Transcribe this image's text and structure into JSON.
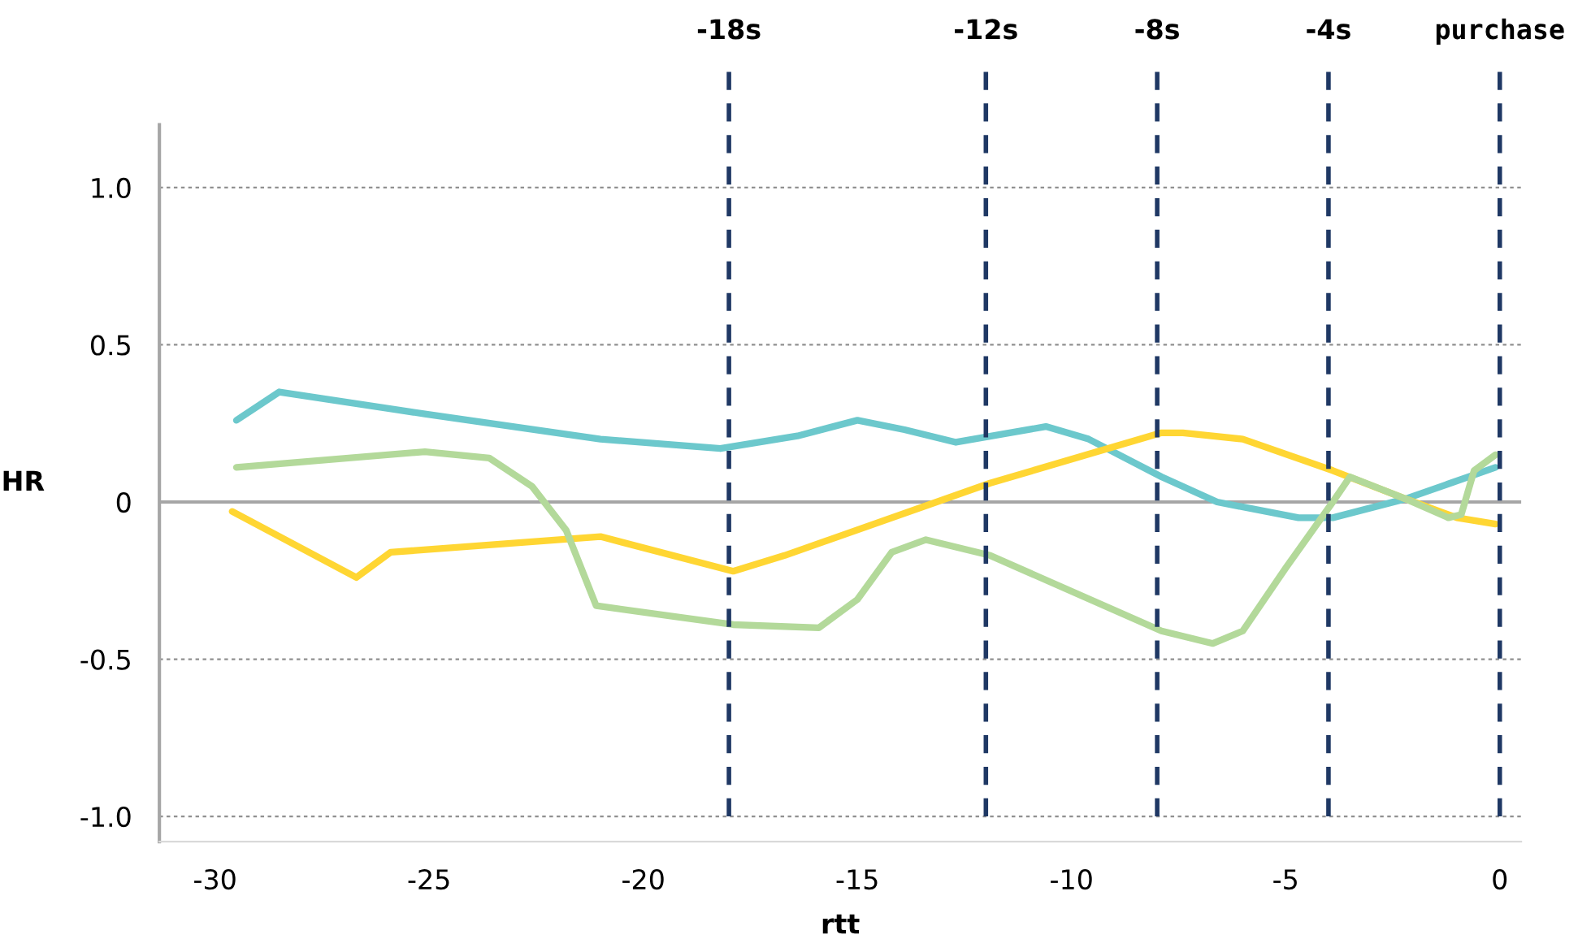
{
  "chart_data": {
    "type": "line",
    "xlabel": "rtt",
    "ylabel": "HR",
    "xlim": [
      -31.3,
      0.5
    ],
    "ylim": [
      -1.08,
      1.2
    ],
    "xticks": [
      -30,
      -25,
      -20,
      -15,
      -10,
      -5,
      0
    ],
    "yticks": [
      {
        "value": -1.0,
        "label": "-1.0"
      },
      {
        "value": -0.5,
        "label": "-0.5"
      },
      0,
      {
        "value": 0.5,
        "label": "0.5"
      },
      {
        "value": 1.0,
        "label": "1.0"
      }
    ],
    "grid": "y",
    "marker": "none",
    "line_style": "solid",
    "series": [
      {
        "color": "#6cc8cc",
        "x": [
          -29.5,
          -28.5,
          -25.1,
          -21.0,
          -18.2,
          -16.4,
          -15.0,
          -13.9,
          -12.7,
          -10.6,
          -9.6,
          -7.9,
          -6.6,
          -4.7,
          -3.9,
          -2.2,
          -0.1
        ],
        "values": [
          0.26,
          0.35,
          0.28,
          0.2,
          0.17,
          0.21,
          0.26,
          0.23,
          0.19,
          0.24,
          0.2,
          0.08,
          0.0,
          -0.05,
          -0.05,
          0.01,
          0.11
        ]
      },
      {
        "color": "#ffd633",
        "x": [
          -29.6,
          -26.7,
          -25.9,
          -21.0,
          -17.9,
          -16.7,
          -11.9,
          -7.9,
          -7.4,
          -6.0,
          -3.9,
          -2.2,
          -1.0,
          -0.1
        ],
        "values": [
          -0.03,
          -0.24,
          -0.16,
          -0.11,
          -0.22,
          -0.17,
          0.06,
          0.22,
          0.22,
          0.2,
          0.1,
          0.01,
          -0.05,
          -0.07
        ]
      },
      {
        "color": "#b3d99a",
        "x": [
          -29.5,
          -25.1,
          -23.6,
          -22.6,
          -21.8,
          -21.1,
          -17.9,
          -15.9,
          -15.0,
          -14.2,
          -13.4,
          -11.9,
          -7.9,
          -6.7,
          -6.0,
          -5.0,
          -3.9,
          -3.5,
          -2.2,
          -1.2,
          -0.9,
          -0.6,
          -0.1
        ],
        "values": [
          0.11,
          0.16,
          0.14,
          0.05,
          -0.09,
          -0.33,
          -0.39,
          -0.4,
          -0.31,
          -0.16,
          -0.12,
          -0.17,
          -0.41,
          -0.45,
          -0.41,
          -0.21,
          0.0,
          0.08,
          0.01,
          -0.05,
          -0.04,
          0.1,
          0.15
        ]
      }
    ],
    "ref_lines": [
      {
        "axis": "y",
        "value": 0,
        "color": "#a6a6a6",
        "line_style": "solid"
      },
      {
        "axis": "x",
        "value": -18,
        "label": "-18s",
        "color": "#1f3864",
        "line_style": "dashed"
      },
      {
        "axis": "x",
        "value": -12,
        "label": "-12s",
        "color": "#1f3864",
        "line_style": "dashed"
      },
      {
        "axis": "x",
        "value": -8,
        "label": "-8s",
        "color": "#1f3864",
        "line_style": "dashed"
      },
      {
        "axis": "x",
        "value": -4,
        "label": "-4s",
        "color": "#1f3864",
        "line_style": "dashed"
      },
      {
        "axis": "x",
        "value": 0,
        "label": "purchase",
        "color": "#1f3864",
        "line_style": "dashed"
      }
    ]
  }
}
